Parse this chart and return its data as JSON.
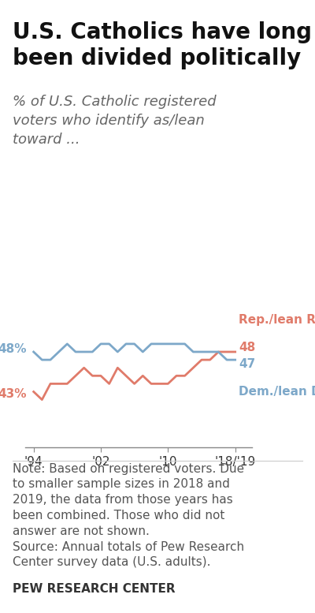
{
  "title": "U.S. Catholics have long\nbeen divided politically",
  "subtitle": "% of U.S. Catholic registered\nvoters who identify as/lean\ntoward ...",
  "rep_label": "Rep./lean Rep.",
  "dem_label": "Dem./lean Dem.",
  "years": [
    1994,
    1995,
    1996,
    1997,
    1998,
    1999,
    2000,
    2001,
    2002,
    2003,
    2004,
    2005,
    2006,
    2007,
    2008,
    2009,
    2010,
    2011,
    2012,
    2013,
    2014,
    2015,
    2016,
    2017,
    2018
  ],
  "rep_values": [
    43,
    42,
    44,
    44,
    44,
    45,
    46,
    45,
    45,
    44,
    46,
    45,
    44,
    45,
    44,
    44,
    44,
    45,
    45,
    46,
    47,
    47,
    48,
    48,
    48
  ],
  "dem_values": [
    48,
    47,
    47,
    48,
    49,
    48,
    48,
    48,
    49,
    49,
    48,
    49,
    49,
    48,
    49,
    49,
    49,
    49,
    49,
    48,
    48,
    48,
    48,
    47,
    47
  ],
  "rep_color": "#e07b6a",
  "dem_color": "#7da8c9",
  "rep_start_label": "43%",
  "dem_start_label": "48%",
  "rep_end_value": "48",
  "dem_end_value": "47",
  "xtick_labels": [
    "'94",
    "'02",
    "'10",
    "'18/'19"
  ],
  "xtick_positions": [
    1994,
    2002,
    2010,
    2018
  ],
  "note_text": "Note: Based on registered voters. Due\nto smaller sample sizes in 2018 and\n2019, the data from those years has\nbeen combined. Those who did not\nanswer are not shown.\nSource: Annual totals of Pew Research\nCenter survey data (U.S. adults).",
  "source_label": "PEW RESEARCH CENTER",
  "background_color": "#ffffff",
  "ylim": [
    36,
    56
  ],
  "title_fontsize": 20,
  "subtitle_fontsize": 13,
  "note_fontsize": 11,
  "source_fontsize": 11
}
